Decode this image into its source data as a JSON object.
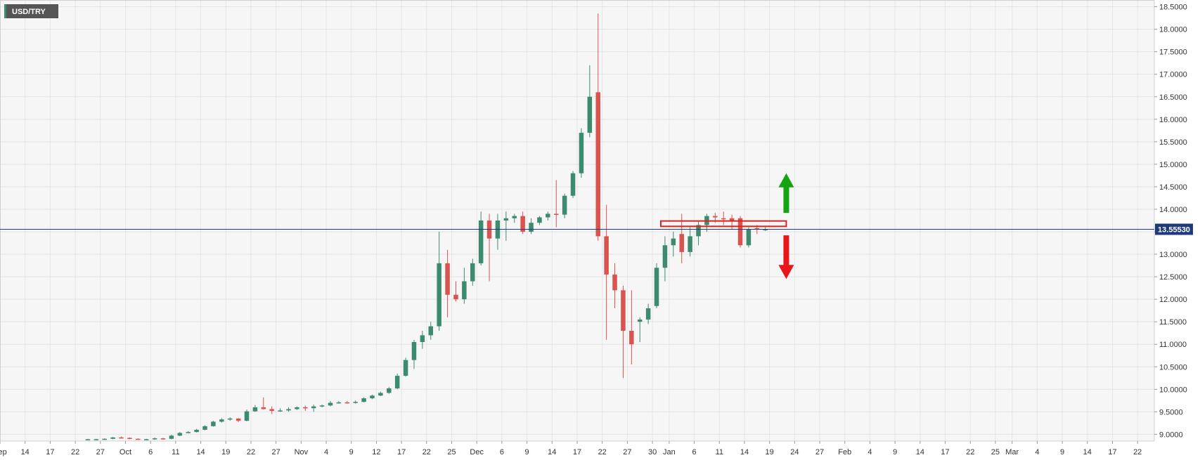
{
  "chart_data": {
    "type": "candlestick",
    "symbol": "USD/TRY",
    "ylim": [
      8.85,
      18.65
    ],
    "y_ticks": [
      "9.0000",
      "9.5000",
      "10.0000",
      "10.5000",
      "11.0000",
      "11.5000",
      "12.0000",
      "12.5000",
      "13.0000",
      "13.5000",
      "14.0000",
      "14.5000",
      "15.0000",
      "15.5000",
      "16.0000",
      "16.5000",
      "17.0000",
      "17.5000",
      "18.0000",
      "18.5000"
    ],
    "x_ticks": [
      {
        "label": "Sep",
        "day": 0
      },
      {
        "label": "14",
        "day": 3
      },
      {
        "label": "17",
        "day": 6
      },
      {
        "label": "22",
        "day": 9
      },
      {
        "label": "27",
        "day": 12
      },
      {
        "label": "Oct",
        "day": 15
      },
      {
        "label": "6",
        "day": 18
      },
      {
        "label": "11",
        "day": 21
      },
      {
        "label": "14",
        "day": 24
      },
      {
        "label": "19",
        "day": 27
      },
      {
        "label": "22",
        "day": 30
      },
      {
        "label": "27",
        "day": 33
      },
      {
        "label": "Nov",
        "day": 36
      },
      {
        "label": "4",
        "day": 39
      },
      {
        "label": "9",
        "day": 42
      },
      {
        "label": "12",
        "day": 45
      },
      {
        "label": "17",
        "day": 48
      },
      {
        "label": "22",
        "day": 51
      },
      {
        "label": "25",
        "day": 54
      },
      {
        "label": "Dec",
        "day": 57
      },
      {
        "label": "6",
        "day": 60
      },
      {
        "label": "9",
        "day": 63
      },
      {
        "label": "14",
        "day": 66
      },
      {
        "label": "17",
        "day": 69
      },
      {
        "label": "22",
        "day": 72
      },
      {
        "label": "27",
        "day": 75
      },
      {
        "label": "30",
        "day": 78
      },
      {
        "label": "Jan",
        "day": 80
      },
      {
        "label": "6",
        "day": 83
      },
      {
        "label": "11",
        "day": 86
      },
      {
        "label": "14",
        "day": 89
      },
      {
        "label": "19",
        "day": 92
      },
      {
        "label": "24",
        "day": 95
      },
      {
        "label": "27",
        "day": 98
      },
      {
        "label": "Feb",
        "day": 101
      },
      {
        "label": "4",
        "day": 104
      },
      {
        "label": "9",
        "day": 107
      },
      {
        "label": "14",
        "day": 110
      },
      {
        "label": "17",
        "day": 113
      },
      {
        "label": "22",
        "day": 116
      },
      {
        "label": "25",
        "day": 119
      },
      {
        "label": "Mar",
        "day": 121
      },
      {
        "label": "4",
        "day": 124
      },
      {
        "label": "9",
        "day": 127
      },
      {
        "label": "14",
        "day": 130
      },
      {
        "label": "17",
        "day": 133
      },
      {
        "label": "22",
        "day": 136
      }
    ],
    "x_range_days": [
      0,
      138
    ],
    "current_price": 13.5553,
    "current_price_label": "13.55530",
    "up_color": "#3d8b6e",
    "down_color": "#d9534f",
    "candles": [
      {
        "x": 10.5,
        "o": 8.88,
        "h": 8.9,
        "l": 8.87,
        "c": 8.89
      },
      {
        "x": 11.5,
        "o": 8.89,
        "h": 8.9,
        "l": 8.88,
        "c": 8.89
      },
      {
        "x": 12.5,
        "o": 8.89,
        "h": 8.91,
        "l": 8.88,
        "c": 8.9
      },
      {
        "x": 13.5,
        "o": 8.9,
        "h": 8.94,
        "l": 8.89,
        "c": 8.93
      },
      {
        "x": 14.5,
        "o": 8.93,
        "h": 8.95,
        "l": 8.91,
        "c": 8.92
      },
      {
        "x": 15.5,
        "o": 8.92,
        "h": 8.93,
        "l": 8.89,
        "c": 8.9
      },
      {
        "x": 16.5,
        "o": 8.9,
        "h": 8.91,
        "l": 8.88,
        "c": 8.89
      },
      {
        "x": 17.5,
        "o": 8.89,
        "h": 8.9,
        "l": 8.88,
        "c": 8.89
      },
      {
        "x": 18.5,
        "o": 8.89,
        "h": 8.93,
        "l": 8.88,
        "c": 8.91
      },
      {
        "x": 19.5,
        "o": 8.91,
        "h": 8.92,
        "l": 8.88,
        "c": 8.9
      },
      {
        "x": 20.5,
        "o": 8.9,
        "h": 8.99,
        "l": 8.89,
        "c": 8.97
      },
      {
        "x": 21.5,
        "o": 8.97,
        "h": 9.05,
        "l": 8.96,
        "c": 9.03
      },
      {
        "x": 22.5,
        "o": 9.03,
        "h": 9.07,
        "l": 9.02,
        "c": 9.05
      },
      {
        "x": 23.5,
        "o": 9.05,
        "h": 9.12,
        "l": 9.04,
        "c": 9.1
      },
      {
        "x": 24.5,
        "o": 9.1,
        "h": 9.2,
        "l": 9.09,
        "c": 9.18
      },
      {
        "x": 25.5,
        "o": 9.18,
        "h": 9.3,
        "l": 9.17,
        "c": 9.28
      },
      {
        "x": 26.5,
        "o": 9.28,
        "h": 9.36,
        "l": 9.26,
        "c": 9.33
      },
      {
        "x": 27.5,
        "o": 9.33,
        "h": 9.38,
        "l": 9.3,
        "c": 9.35
      },
      {
        "x": 28.5,
        "o": 9.35,
        "h": 9.36,
        "l": 9.27,
        "c": 9.3
      },
      {
        "x": 29.5,
        "o": 9.3,
        "h": 9.55,
        "l": 9.29,
        "c": 9.51
      },
      {
        "x": 30.5,
        "o": 9.51,
        "h": 9.65,
        "l": 9.5,
        "c": 9.6
      },
      {
        "x": 31.5,
        "o": 9.6,
        "h": 9.82,
        "l": 9.55,
        "c": 9.56
      },
      {
        "x": 32.5,
        "o": 9.56,
        "h": 9.62,
        "l": 9.45,
        "c": 9.52
      },
      {
        "x": 33.5,
        "o": 9.52,
        "h": 9.58,
        "l": 9.5,
        "c": 9.53
      },
      {
        "x": 34.5,
        "o": 9.53,
        "h": 9.6,
        "l": 9.5,
        "c": 9.56
      },
      {
        "x": 35.5,
        "o": 9.56,
        "h": 9.62,
        "l": 9.54,
        "c": 9.6
      },
      {
        "x": 36.5,
        "o": 9.6,
        "h": 9.64,
        "l": 9.52,
        "c": 9.58
      },
      {
        "x": 37.5,
        "o": 9.58,
        "h": 9.66,
        "l": 9.5,
        "c": 9.62
      },
      {
        "x": 38.5,
        "o": 9.62,
        "h": 9.66,
        "l": 9.6,
        "c": 9.64
      },
      {
        "x": 39.5,
        "o": 9.64,
        "h": 9.74,
        "l": 9.62,
        "c": 9.7
      },
      {
        "x": 40.5,
        "o": 9.7,
        "h": 9.74,
        "l": 9.68,
        "c": 9.71
      },
      {
        "x": 41.5,
        "o": 9.71,
        "h": 9.74,
        "l": 9.68,
        "c": 9.7
      },
      {
        "x": 42.5,
        "o": 9.7,
        "h": 9.75,
        "l": 9.68,
        "c": 9.72
      },
      {
        "x": 43.5,
        "o": 9.72,
        "h": 9.82,
        "l": 9.71,
        "c": 9.8
      },
      {
        "x": 44.5,
        "o": 9.8,
        "h": 9.88,
        "l": 9.78,
        "c": 9.86
      },
      {
        "x": 45.5,
        "o": 9.86,
        "h": 9.95,
        "l": 9.85,
        "c": 9.92
      },
      {
        "x": 46.5,
        "o": 9.92,
        "h": 10.05,
        "l": 9.9,
        "c": 10.02
      },
      {
        "x": 47.5,
        "o": 10.02,
        "h": 10.35,
        "l": 10.0,
        "c": 10.3
      },
      {
        "x": 48.5,
        "o": 10.3,
        "h": 10.7,
        "l": 10.28,
        "c": 10.65
      },
      {
        "x": 49.5,
        "o": 10.65,
        "h": 11.1,
        "l": 10.45,
        "c": 11.05
      },
      {
        "x": 50.5,
        "o": 11.05,
        "h": 11.3,
        "l": 10.9,
        "c": 11.2
      },
      {
        "x": 51.5,
        "o": 11.2,
        "h": 11.5,
        "l": 11.1,
        "c": 11.4
      },
      {
        "x": 52.5,
        "o": 11.4,
        "h": 13.5,
        "l": 11.3,
        "c": 12.8
      },
      {
        "x": 53.5,
        "o": 12.8,
        "h": 13.1,
        "l": 11.6,
        "c": 12.1
      },
      {
        "x": 54.5,
        "o": 12.1,
        "h": 12.4,
        "l": 11.95,
        "c": 12.0
      },
      {
        "x": 55.5,
        "o": 12.0,
        "h": 12.7,
        "l": 11.9,
        "c": 12.4
      },
      {
        "x": 56.5,
        "o": 12.4,
        "h": 12.9,
        "l": 12.3,
        "c": 12.8
      },
      {
        "x": 57.5,
        "o": 12.8,
        "h": 13.95,
        "l": 12.75,
        "c": 13.75
      },
      {
        "x": 58.5,
        "o": 13.75,
        "h": 13.9,
        "l": 12.4,
        "c": 13.35
      },
      {
        "x": 59.5,
        "o": 13.35,
        "h": 13.9,
        "l": 13.1,
        "c": 13.75
      },
      {
        "x": 60.5,
        "o": 13.75,
        "h": 13.95,
        "l": 13.3,
        "c": 13.8
      },
      {
        "x": 61.5,
        "o": 13.8,
        "h": 13.9,
        "l": 13.7,
        "c": 13.85
      },
      {
        "x": 62.5,
        "o": 13.85,
        "h": 13.95,
        "l": 13.45,
        "c": 13.5
      },
      {
        "x": 63.5,
        "o": 13.5,
        "h": 13.8,
        "l": 13.45,
        "c": 13.7
      },
      {
        "x": 64.5,
        "o": 13.7,
        "h": 13.85,
        "l": 13.65,
        "c": 13.82
      },
      {
        "x": 65.5,
        "o": 13.82,
        "h": 13.95,
        "l": 13.75,
        "c": 13.9
      },
      {
        "x": 66.5,
        "o": 13.9,
        "h": 14.65,
        "l": 13.6,
        "c": 13.88
      },
      {
        "x": 67.5,
        "o": 13.88,
        "h": 14.35,
        "l": 13.8,
        "c": 14.3
      },
      {
        "x": 68.5,
        "o": 14.3,
        "h": 14.85,
        "l": 14.25,
        "c": 14.8
      },
      {
        "x": 69.5,
        "o": 14.8,
        "h": 15.8,
        "l": 14.7,
        "c": 15.7
      },
      {
        "x": 70.5,
        "o": 15.7,
        "h": 17.2,
        "l": 15.6,
        "c": 16.5
      },
      {
        "x": 71.5,
        "o": 16.6,
        "h": 18.35,
        "l": 13.3,
        "c": 13.4
      },
      {
        "x": 72.5,
        "o": 13.4,
        "h": 14.1,
        "l": 11.1,
        "c": 12.55
      },
      {
        "x": 73.5,
        "o": 12.55,
        "h": 12.8,
        "l": 11.8,
        "c": 12.2
      },
      {
        "x": 74.5,
        "o": 12.2,
        "h": 12.3,
        "l": 10.25,
        "c": 11.3
      },
      {
        "x": 75.5,
        "o": 11.3,
        "h": 12.2,
        "l": 10.55,
        "c": 11.0
      },
      {
        "x": 76.5,
        "o": 11.5,
        "h": 11.6,
        "l": 11.05,
        "c": 11.55
      },
      {
        "x": 77.5,
        "o": 11.55,
        "h": 11.9,
        "l": 11.45,
        "c": 11.8
      },
      {
        "x": 78.5,
        "o": 11.85,
        "h": 12.8,
        "l": 11.8,
        "c": 12.7
      },
      {
        "x": 79.5,
        "o": 12.7,
        "h": 13.4,
        "l": 12.4,
        "c": 13.2
      },
      {
        "x": 80.5,
        "o": 13.2,
        "h": 13.5,
        "l": 12.95,
        "c": 13.35
      },
      {
        "x": 81.5,
        "o": 13.45,
        "h": 13.9,
        "l": 12.8,
        "c": 13.05
      },
      {
        "x": 82.5,
        "o": 13.05,
        "h": 13.6,
        "l": 12.95,
        "c": 13.4
      },
      {
        "x": 83.5,
        "o": 13.4,
        "h": 13.75,
        "l": 13.2,
        "c": 13.65
      },
      {
        "x": 84.5,
        "o": 13.65,
        "h": 13.9,
        "l": 13.5,
        "c": 13.85
      },
      {
        "x": 85.5,
        "o": 13.85,
        "h": 13.92,
        "l": 13.7,
        "c": 13.82
      },
      {
        "x": 86.5,
        "o": 13.8,
        "h": 13.95,
        "l": 13.65,
        "c": 13.78
      },
      {
        "x": 87.5,
        "o": 13.8,
        "h": 13.88,
        "l": 13.55,
        "c": 13.75
      },
      {
        "x": 88.5,
        "o": 13.8,
        "h": 13.85,
        "l": 13.15,
        "c": 13.2
      },
      {
        "x": 89.5,
        "o": 13.2,
        "h": 13.6,
        "l": 13.15,
        "c": 13.55
      },
      {
        "x": 90.5,
        "o": 13.58,
        "h": 13.65,
        "l": 13.45,
        "c": 13.55
      },
      {
        "x": 91.5,
        "o": 13.55,
        "h": 13.6,
        "l": 13.52,
        "c": 13.5553
      }
    ]
  },
  "annotations": {
    "zone": {
      "day_from": 79,
      "day_to": 94,
      "y_low": 13.62,
      "y_high": 13.74,
      "color": "#e0201b"
    },
    "arrow_up": {
      "day": 94,
      "y_base": 13.92,
      "y_tip": 14.8,
      "color": "#13a313"
    },
    "arrow_down": {
      "day": 94,
      "y_base": 13.42,
      "y_tip": 12.45,
      "color": "#e8151b"
    }
  }
}
